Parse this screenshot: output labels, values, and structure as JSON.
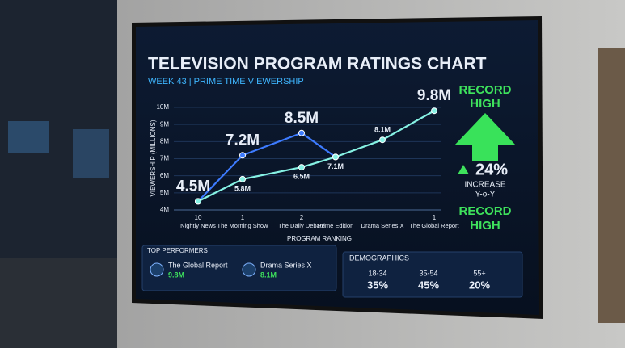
{
  "chart_data": {
    "type": "line",
    "title": "TELEVISION PROGRAM RATINGS CHART",
    "subtitle": "WEEK 43 | PRIME TIME VIEWERSHIP",
    "y_label": "VIEWERSHIP (MILLIONS)",
    "x_label": "PROGRAM RANKING",
    "categories": [
      "Nightly News",
      "The Morning Show",
      "The Daily Debate",
      "Prime Edition",
      "Drama Series X",
      "The Global Report"
    ],
    "category_ranks": [
      "10",
      "1",
      "2",
      null,
      null,
      "1"
    ],
    "series": [
      {
        "color": "#3d7bff",
        "values": [
          4.5,
          7.2,
          8.5,
          7.1,
          null,
          null
        ],
        "value_labels": [
          "4.5M",
          "7.2M",
          "8.5M",
          null,
          null,
          null
        ]
      },
      {
        "color": "#86f2e4",
        "values": [
          4.5,
          5.8,
          6.5,
          7.1,
          8.1,
          9.8
        ],
        "value_labels": [
          null,
          "5.8M",
          "6.5M",
          "7.1M",
          "8.1M",
          "9.8M"
        ]
      }
    ],
    "ylim": [
      4,
      10
    ],
    "yticks": [
      {
        "value": 4,
        "label": "4M"
      },
      {
        "value": 5,
        "label": "5M"
      },
      {
        "value": 6,
        "label": "6M"
      },
      {
        "value": 7,
        "label": "7M"
      },
      {
        "value": 8,
        "label": "8M"
      },
      {
        "value": 9,
        "label": "9M"
      },
      {
        "value": 10,
        "label": "10M"
      }
    ],
    "grid": true
  },
  "highlight": {
    "top": [
      "RECORD",
      "HIGH"
    ],
    "change": "24%",
    "change_label": "INCREASE",
    "period": "Y-o-Y",
    "bottom": [
      "RECORD",
      "HIGH"
    ]
  },
  "top_performers": {
    "title": "TOP PERFORMERS",
    "items": [
      {
        "name": "The Global Report",
        "value": "9.8M"
      },
      {
        "name": "Drama Series X",
        "value": "8.1M"
      }
    ]
  },
  "demographics": {
    "title": "DEMOGRAPHICS",
    "groups": [
      {
        "label": "18-34",
        "share": "35%"
      },
      {
        "label": "35-54",
        "share": "45%"
      },
      {
        "label": "55+",
        "share": "20%"
      }
    ]
  }
}
